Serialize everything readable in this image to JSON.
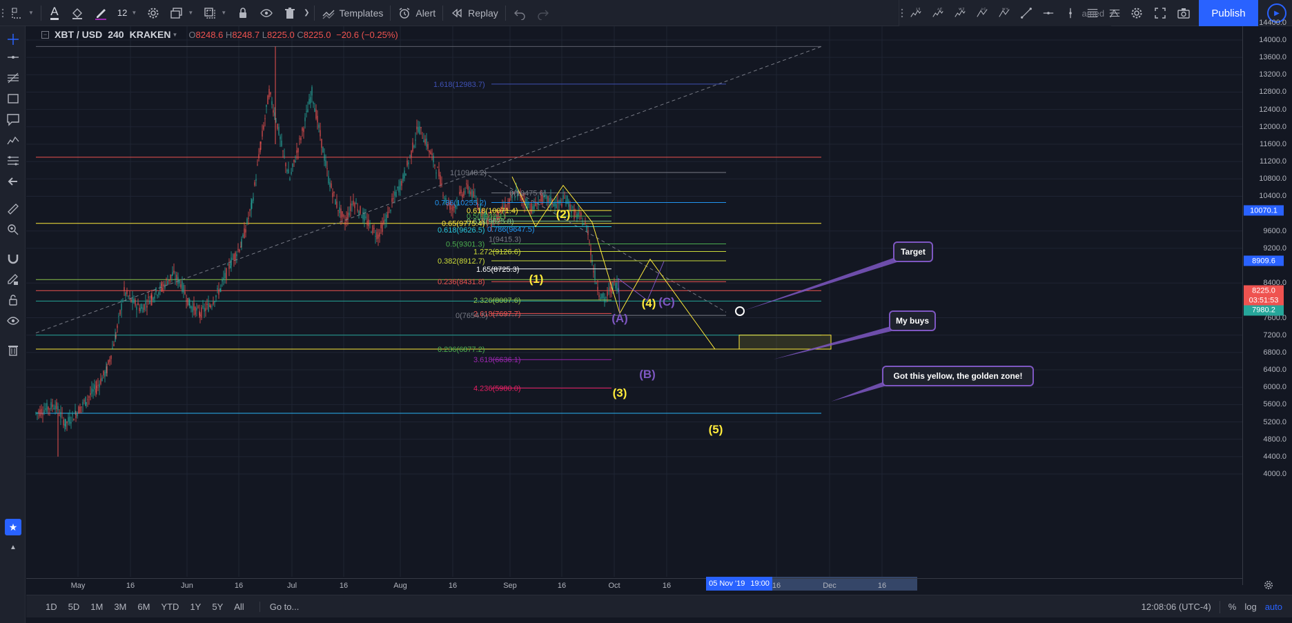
{
  "toolbar": {
    "font_size": "12",
    "templates_label": "Templates",
    "alert_label": "Alert",
    "replay_label": "Replay",
    "layout_name": "amed",
    "publish_label": "Publish",
    "elliott_icons": [
      "1 5",
      "A E",
      "W Z",
      "A C",
      "W Y"
    ]
  },
  "legend": {
    "symbol": "XBT / USD",
    "interval": "240",
    "exchange": "KRAKEN",
    "open_label": "O",
    "open": "8248.6",
    "high_label": "H",
    "high": "8248.7",
    "low_label": "L",
    "low": "8225.0",
    "close_label": "C",
    "close": "8225.0",
    "change": "−20.6 (−0.25%)"
  },
  "price_axis": {
    "labels": [
      "14400.0",
      "14000.0",
      "13600.0",
      "13200.0",
      "12800.0",
      "12400.0",
      "12000.0",
      "11600.0",
      "11200.0",
      "10800.0",
      "10400.0",
      "9600.0",
      "9200.0",
      "8400.0",
      "7600.0",
      "7200.0",
      "6800.0",
      "6400.0",
      "6000.0",
      "5600.0",
      "5200.0",
      "4800.0",
      "4400.0",
      "4000.0"
    ],
    "tags": [
      {
        "text": "10070.1",
        "price": 10070.1,
        "color": "#2962ff"
      },
      {
        "text": "8909.6",
        "price": 8909.6,
        "color": "#2962ff"
      },
      {
        "text": "8225.0",
        "price": 8225.0,
        "color": "#ef5350"
      },
      {
        "text": "03:51:53",
        "price": 8000,
        "color": "#ef5350"
      },
      {
        "text": "7980.2",
        "price": 7775,
        "color": "#26a69a"
      }
    ]
  },
  "time_axis": {
    "labels": [
      {
        "text": "May",
        "x": 113
      },
      {
        "text": "16",
        "x": 189
      },
      {
        "text": "Jun",
        "x": 271
      },
      {
        "text": "16",
        "x": 346
      },
      {
        "text": "Jul",
        "x": 423
      },
      {
        "text": "16",
        "x": 498
      },
      {
        "text": "Aug",
        "x": 580
      },
      {
        "text": "16",
        "x": 656
      },
      {
        "text": "Sep",
        "x": 739
      },
      {
        "text": "16",
        "x": 814
      },
      {
        "text": "Oct",
        "x": 890
      },
      {
        "text": "16",
        "x": 966
      },
      {
        "text": "16",
        "x": 1125
      },
      {
        "text": "Dec",
        "x": 1202
      },
      {
        "text": "16",
        "x": 1278
      }
    ],
    "cursor_date": "05 Nov '19",
    "cursor_time": "19:00"
  },
  "bottom": {
    "ranges": [
      "1D",
      "5D",
      "1M",
      "3M",
      "6M",
      "YTD",
      "1Y",
      "5Y",
      "All"
    ],
    "goto": "Go to...",
    "clock": "12:08:06 (UTC-4)",
    "percent": "%",
    "log": "log",
    "auto": "auto"
  },
  "callouts": {
    "target": "Target",
    "my_buys": "My buys",
    "golden_zone": "Got this yellow, the golden zone!"
  },
  "fib_labels": [
    {
      "text": "1.618(12983.7)",
      "color": "#3f51b5"
    },
    {
      "text": "1(10948.2)",
      "color": "#787b86"
    },
    {
      "text": "0(10475.6)",
      "color": "#787b86"
    },
    {
      "text": "0.786(10255.2)",
      "color": "#2196f3"
    },
    {
      "text": "0.618(10071.4)",
      "color": "#ffeb3b"
    },
    {
      "text": "0.5(9942.1)",
      "color": "#4caf50"
    },
    {
      "text": "0.618(9825.8)",
      "color": "#81c784"
    },
    {
      "text": "0.65(9775.4)",
      "color": "#ffeb3b"
    },
    {
      "text": "0.618(9626.5)",
      "color": "#26c6da"
    },
    {
      "text": "0.786(9647.5)",
      "color": "#2196f3"
    },
    {
      "text": "1(9415.3)",
      "color": "#787b86"
    },
    {
      "text": "0.5(9301.3)",
      "color": "#4caf50"
    },
    {
      "text": "1.272(9126.6)",
      "color": "#cddc39"
    },
    {
      "text": "0.382(8912.7)",
      "color": "#cddc39"
    },
    {
      "text": "1.65(8725.3)",
      "color": "#ffffff"
    },
    {
      "text": "0.236(8431.8)",
      "color": "#ef5350"
    },
    {
      "text": "2.326(8007.6)",
      "color": "#8bc34a"
    },
    {
      "text": "2.618(7697.7)",
      "color": "#ef5350"
    },
    {
      "text": "0(7654.5)",
      "color": "#787b86"
    },
    {
      "text": "0.236(6877.2)",
      "color": "#4caf50"
    },
    {
      "text": "3.618(6636.1)",
      "color": "#9c27b0"
    },
    {
      "text": "4.236(5980.0)",
      "color": "#e91e63"
    }
  ],
  "waves": {
    "w1": "(1)",
    "w2": "(2)",
    "w3": "(3)",
    "w4": "(4)",
    "w5": "(5)",
    "wa": "(A)",
    "wb": "(B)",
    "wc": "(C)"
  }
}
